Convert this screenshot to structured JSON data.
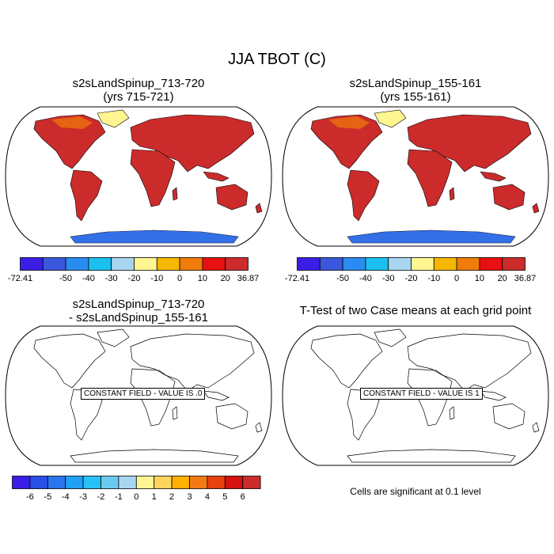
{
  "title": "JJA TBOT (C)",
  "panels": [
    {
      "title_line1": "s2sLandSpinup_713-720",
      "title_line2": "(yrs 715-721)"
    },
    {
      "title_line1": "s2sLandSpinup_155-161",
      "title_line2": "(yrs 155-161)"
    },
    {
      "title_line1": "s2sLandSpinup_713-720",
      "title_line2": "- s2sLandSpinup_155-161",
      "constant_label": "CONSTANT FIELD - VALUE IS .0"
    },
    {
      "title_line1": "T-Test of two Case means at each grid point",
      "constant_label": "CONSTANT FIELD - VALUE IS 1",
      "note": "Cells are significant at 0.1 level"
    }
  ],
  "chart_data": [
    {
      "type": "heatmap",
      "title": "s2sLandSpinup_713-720 (yrs 715-721)",
      "variable": "JJA TBOT (C)",
      "colorbar": {
        "labels": [
          "-72.41",
          "-50",
          "-40",
          "-30",
          "-20",
          "-10",
          "0",
          "10",
          "20",
          "36.87"
        ],
        "colors": [
          "#3a1ee6",
          "#3a57de",
          "#2a8cf0",
          "#1bc0f0",
          "#a8d6f0",
          "#fff591",
          "#f5b700",
          "#f07c0a",
          "#e81010",
          "#cc2b2b"
        ],
        "min": -72.41,
        "max": 36.87
      }
    },
    {
      "type": "heatmap",
      "title": "s2sLandSpinup_155-161 (yrs 155-161)",
      "variable": "JJA TBOT (C)",
      "colorbar": {
        "labels": [
          "-72.41",
          "-50",
          "-40",
          "-30",
          "-20",
          "-10",
          "0",
          "10",
          "20",
          "36.87"
        ],
        "colors": [
          "#3a1ee6",
          "#3a57de",
          "#2a8cf0",
          "#1bc0f0",
          "#a8d6f0",
          "#fff591",
          "#f5b700",
          "#f07c0a",
          "#e81010",
          "#cc2b2b"
        ],
        "min": -72.41,
        "max": 36.87
      }
    },
    {
      "type": "heatmap",
      "title": "s2sLandSpinup_713-720 - s2sLandSpinup_155-161",
      "constant_value": 0,
      "colorbar": {
        "labels": [
          "-6",
          "-5",
          "-4",
          "-3",
          "-2",
          "-1",
          "0",
          "1",
          "2",
          "3",
          "4",
          "5",
          "6"
        ],
        "colors": [
          "#3a1ee6",
          "#2a4fe6",
          "#2a74f0",
          "#1fa0f5",
          "#28c0f5",
          "#6ccaee",
          "#a8d6f0",
          "#fff591",
          "#ffd45c",
          "#ffb000",
          "#f57a14",
          "#e8400f",
          "#d41010",
          "#cc2b2b"
        ],
        "min": -6,
        "max": 6
      }
    },
    {
      "type": "heatmap",
      "title": "T-Test of two Case means at each grid point",
      "constant_value": 1,
      "significance_level": 0.1
    }
  ]
}
